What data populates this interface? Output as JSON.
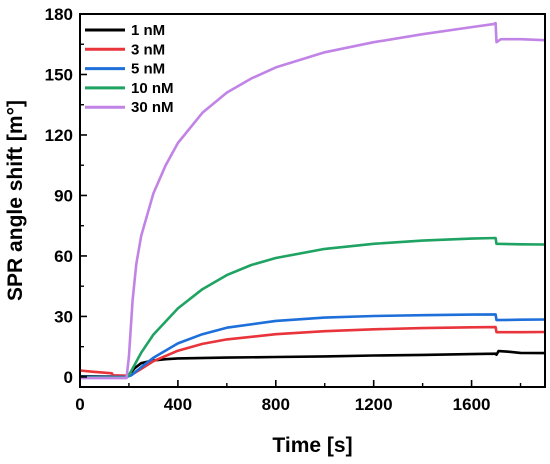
{
  "chart_data": {
    "type": "line",
    "title": "",
    "xlabel": "Time [s]",
    "ylabel": "SPR angle shift [m°]",
    "xlim": [
      0,
      1900
    ],
    "ylim": [
      -5,
      180
    ],
    "xticks": [
      0,
      400,
      800,
      1200,
      1600
    ],
    "yticks": [
      0,
      30,
      60,
      90,
      120,
      150,
      180
    ],
    "grid": false,
    "legend_position": "top-left",
    "series": [
      {
        "name": "1 nM",
        "color": "#000000",
        "points": [
          [
            0,
            0.3
          ],
          [
            100,
            0.2
          ],
          [
            190,
            0.2
          ],
          [
            200,
            1.0
          ],
          [
            225,
            4.5
          ],
          [
            250,
            6.8
          ],
          [
            300,
            8.2
          ],
          [
            350,
            8.8
          ],
          [
            400,
            9.2
          ],
          [
            600,
            9.6
          ],
          [
            800,
            9.9
          ],
          [
            1000,
            10.2
          ],
          [
            1200,
            10.6
          ],
          [
            1400,
            10.9
          ],
          [
            1600,
            11.3
          ],
          [
            1698,
            11.5
          ],
          [
            1702,
            11.0
          ],
          [
            1710,
            12.8
          ],
          [
            1750,
            12.5
          ],
          [
            1800,
            11.9
          ],
          [
            1900,
            11.8
          ]
        ]
      },
      {
        "name": "3 nM",
        "color": "#e8343a",
        "points": [
          [
            0,
            3.2
          ],
          [
            50,
            2.6
          ],
          [
            100,
            2.1
          ],
          [
            130,
            1.8
          ],
          [
            135,
            0.8
          ],
          [
            190,
            0.6
          ],
          [
            210,
            1.0
          ],
          [
            250,
            4.0
          ],
          [
            300,
            7.8
          ],
          [
            400,
            13.0
          ],
          [
            500,
            16.4
          ],
          [
            600,
            18.6
          ],
          [
            800,
            21.2
          ],
          [
            1000,
            22.7
          ],
          [
            1200,
            23.6
          ],
          [
            1400,
            24.2
          ],
          [
            1600,
            24.6
          ],
          [
            1698,
            24.7
          ],
          [
            1702,
            22.2
          ],
          [
            1800,
            22.2
          ],
          [
            1900,
            22.3
          ]
        ]
      },
      {
        "name": "5 nM",
        "color": "#1e6fd9",
        "points": [
          [
            0,
            0.0
          ],
          [
            190,
            0.0
          ],
          [
            210,
            0.8
          ],
          [
            250,
            4.8
          ],
          [
            300,
            9.5
          ],
          [
            400,
            16.6
          ],
          [
            500,
            21.2
          ],
          [
            600,
            24.4
          ],
          [
            800,
            27.8
          ],
          [
            1000,
            29.4
          ],
          [
            1200,
            30.2
          ],
          [
            1400,
            30.6
          ],
          [
            1600,
            30.9
          ],
          [
            1698,
            31.0
          ],
          [
            1702,
            28.2
          ],
          [
            1800,
            28.4
          ],
          [
            1900,
            28.5
          ]
        ]
      },
      {
        "name": "10 nM",
        "color": "#1ea362",
        "points": [
          [
            0,
            -0.3
          ],
          [
            190,
            -0.3
          ],
          [
            205,
            2.0
          ],
          [
            250,
            12.0
          ],
          [
            300,
            21.0
          ],
          [
            400,
            34.0
          ],
          [
            500,
            43.5
          ],
          [
            600,
            50.5
          ],
          [
            700,
            55.5
          ],
          [
            800,
            59.0
          ],
          [
            1000,
            63.5
          ],
          [
            1200,
            66.0
          ],
          [
            1400,
            67.6
          ],
          [
            1600,
            68.6
          ],
          [
            1698,
            68.9
          ],
          [
            1702,
            66.0
          ],
          [
            1800,
            65.8
          ],
          [
            1900,
            65.7
          ]
        ]
      },
      {
        "name": "30 nM",
        "color": "#c184e6",
        "points": [
          [
            0,
            -0.6
          ],
          [
            190,
            -0.6
          ],
          [
            200,
            10.0
          ],
          [
            215,
            38.0
          ],
          [
            230,
            56.0
          ],
          [
            250,
            70.0
          ],
          [
            300,
            91.0
          ],
          [
            350,
            105.0
          ],
          [
            400,
            116.0
          ],
          [
            500,
            131.0
          ],
          [
            600,
            141.0
          ],
          [
            700,
            148.0
          ],
          [
            800,
            153.5
          ],
          [
            1000,
            161.0
          ],
          [
            1200,
            166.0
          ],
          [
            1400,
            170.0
          ],
          [
            1600,
            173.5
          ],
          [
            1690,
            175.0
          ],
          [
            1698,
            175.5
          ],
          [
            1702,
            166.0
          ],
          [
            1720,
            167.5
          ],
          [
            1800,
            167.5
          ],
          [
            1900,
            167.0
          ]
        ]
      }
    ]
  }
}
